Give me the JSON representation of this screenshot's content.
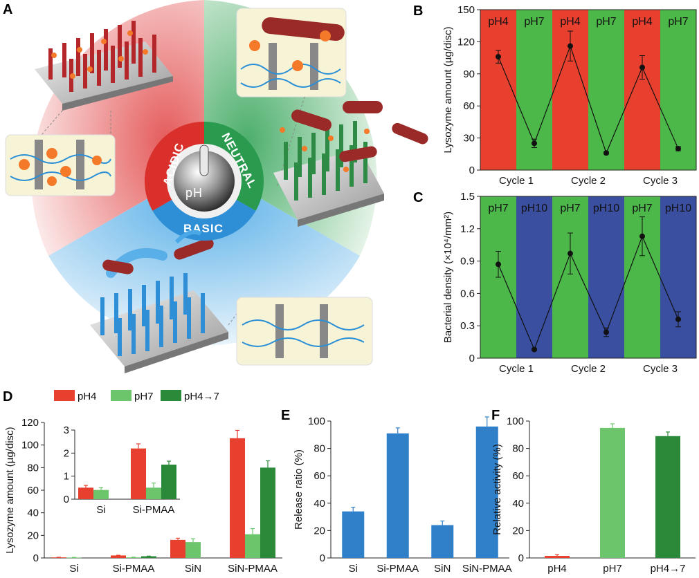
{
  "panel_labels": {
    "a": "A",
    "b": "B",
    "c": "C",
    "d": "D",
    "e": "E",
    "f": "F"
  },
  "schematic": {
    "acidic": "ACIDIC",
    "neutral": "NEUTRAL",
    "basic": "BASIC",
    "knob": "pH",
    "colors": {
      "acidic": "#d9302c",
      "neutral": "#2a9a4e",
      "basic": "#2f8fd6"
    }
  },
  "chart_data": [
    {
      "id": "B",
      "type": "line",
      "ylabel": "Lysozyme amount (µg/disc)",
      "ylim": [
        0,
        150
      ],
      "yticks": [
        0,
        30,
        60,
        90,
        120,
        150
      ],
      "cycles": [
        "Cycle 1",
        "Cycle 2",
        "Cycle 3"
      ],
      "bands": [
        "pH4",
        "pH7",
        "pH4",
        "pH7",
        "pH4",
        "pH7"
      ],
      "band_colors": [
        "#e8402e",
        "#4db84a",
        "#e8402e",
        "#4db84a",
        "#e8402e",
        "#4db84a"
      ],
      "values": [
        106,
        25,
        116,
        16,
        96,
        20
      ],
      "errors": [
        6,
        4,
        14,
        1,
        11,
        2
      ]
    },
    {
      "id": "C",
      "type": "line",
      "ylabel": "Bacterial density (×10⁴/mm²)",
      "ylim": [
        0,
        1.5
      ],
      "yticks": [
        "0",
        "0.3",
        "0.6",
        "0.9",
        "1.2",
        "1.5"
      ],
      "cycles": [
        "Cycle 1",
        "Cycle 2",
        "Cycle 3"
      ],
      "bands": [
        "pH7",
        "pH10",
        "pH7",
        "pH10",
        "pH7",
        "pH10"
      ],
      "band_colors": [
        "#4db84a",
        "#3a4fa0",
        "#4db84a",
        "#3a4fa0",
        "#4db84a",
        "#3a4fa0"
      ],
      "values": [
        0.87,
        0.08,
        0.97,
        0.24,
        1.13,
        0.36
      ],
      "errors": [
        0.12,
        0.01,
        0.19,
        0.04,
        0.18,
        0.07
      ]
    },
    {
      "id": "D",
      "type": "bar",
      "ylabel": "Lysozyme amount (µg/disc)",
      "ylim": [
        0,
        120
      ],
      "yticks": [
        0,
        20,
        40,
        60,
        80,
        100,
        120
      ],
      "categories": [
        "Si",
        "Si-PMAA",
        "SiN",
        "SiN-PMAA"
      ],
      "series": [
        {
          "name": "pH4",
          "color": "#e8402e",
          "values": [
            0.5,
            2.2,
            16,
            106
          ],
          "errors": [
            0.1,
            0.2,
            1.5,
            7
          ]
        },
        {
          "name": "pH7",
          "color": "#6cc56a",
          "values": [
            0.4,
            0.5,
            14,
            21
          ],
          "errors": [
            0.1,
            0.2,
            3,
            5
          ]
        },
        {
          "name": "pH4→7",
          "color": "#2a8a3a",
          "values": [
            null,
            1.5,
            null,
            80
          ],
          "errors": [
            0,
            0.15,
            0,
            6
          ]
        }
      ],
      "inset": {
        "ylim": [
          0,
          3
        ],
        "yticks": [
          0,
          1,
          2,
          3
        ],
        "categories": [
          "Si",
          "Si-PMAA"
        ]
      }
    },
    {
      "id": "E",
      "type": "bar",
      "ylabel": "Release ratio (%)",
      "ylim": [
        0,
        100
      ],
      "yticks": [
        0,
        20,
        40,
        60,
        80,
        100
      ],
      "categories": [
        "Si",
        "Si-PMAA",
        "SiN",
        "SiN-PMAA"
      ],
      "color": "#2f80c8",
      "values": [
        34,
        91,
        24,
        96
      ],
      "errors": [
        3,
        4,
        3,
        7
      ]
    },
    {
      "id": "F",
      "type": "bar",
      "ylabel": "Relative activity (%)",
      "ylim": [
        0,
        100
      ],
      "yticks": [
        0,
        20,
        40,
        60,
        80,
        100
      ],
      "categories": [
        "pH4",
        "pH7",
        "pH4→7"
      ],
      "colors": [
        "#e8402e",
        "#6cc56a",
        "#2a8a3a"
      ],
      "values": [
        1.5,
        95,
        89
      ],
      "errors": [
        0.8,
        3,
        3
      ]
    }
  ]
}
